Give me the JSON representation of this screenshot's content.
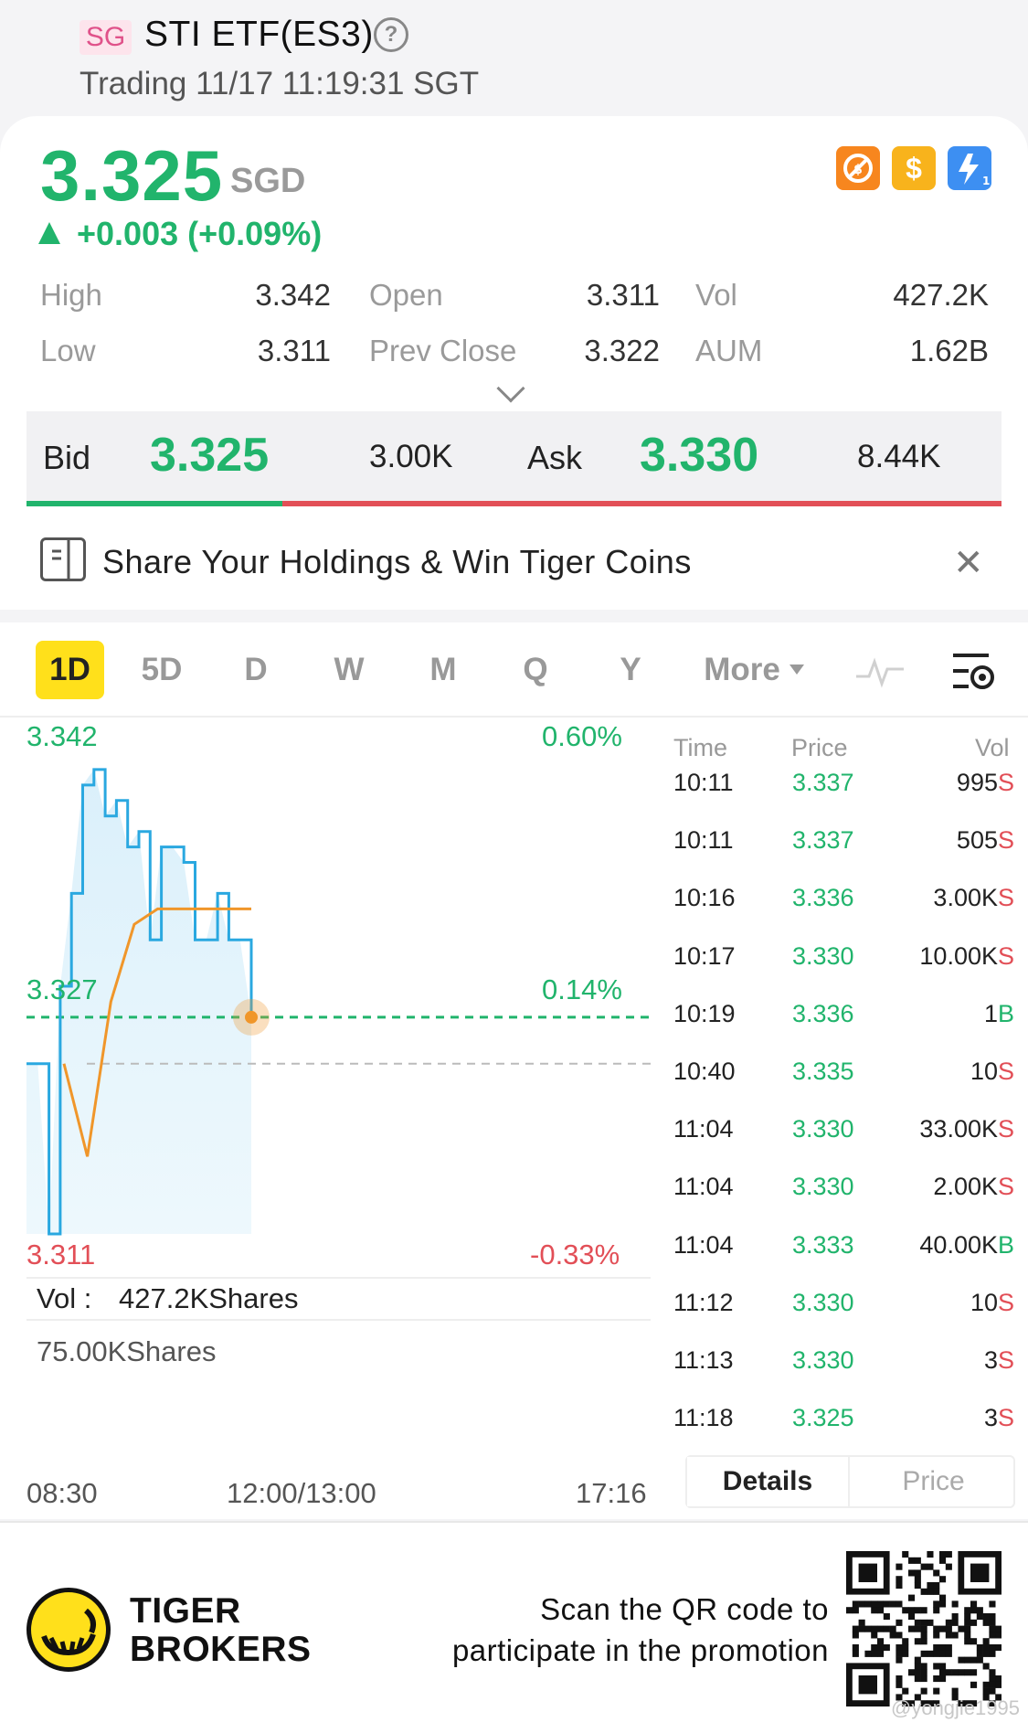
{
  "header": {
    "market_badge": "SG",
    "title": "STI ETF(ES3)",
    "status": "Trading 11/17 11:19:31 SGT"
  },
  "quote": {
    "price": "3.325",
    "currency": "SGD",
    "change": "+0.003 (+0.09%)",
    "badges": [
      {
        "icon": "no-short-icon",
        "color": "#f7861e"
      },
      {
        "icon": "dollar-icon",
        "color": "#f8b31c"
      },
      {
        "icon": "lightning-level1-icon",
        "color": "#3d8ff2"
      }
    ],
    "stats": {
      "high_label": "High",
      "high": "3.342",
      "low_label": "Low",
      "low": "3.311",
      "open_label": "Open",
      "open": "3.311",
      "prev_close_label": "Prev Close",
      "prev_close": "3.322",
      "vol_label": "Vol",
      "vol": "427.2K",
      "aum_label": "AUM",
      "aum": "1.62B"
    }
  },
  "bid_ask": {
    "bid_label": "Bid",
    "bid_price": "3.325",
    "bid_size": "3.00K",
    "ask_label": "Ask",
    "ask_price": "3.330",
    "ask_size": "8.44K",
    "bid_ratio": 0.262
  },
  "promo": {
    "text": "Share Your Holdings & Win Tiger Coins"
  },
  "chart_tabs": {
    "items": [
      "1D",
      "5D",
      "D",
      "W",
      "M",
      "Q",
      "Y"
    ],
    "more": "More",
    "active": "1D"
  },
  "chart_labels": {
    "high": "3.342",
    "high_pct": "0.60%",
    "current": "3.327",
    "current_pct": "0.14%",
    "low": "3.311",
    "low_pct": "-0.33%",
    "vol_label": "Vol :",
    "vol_value": "427.2KShares",
    "vol_max": "75.00KShares",
    "x_start": "08:30",
    "x_mid": "12:00/13:00",
    "x_end": "17:16"
  },
  "chart_data": {
    "type": "line",
    "title": "",
    "x_labels": [
      "08:30",
      "12:00/13:00",
      "17:16"
    ],
    "ylim": [
      3.311,
      3.342
    ],
    "price_series_approx": [
      3.322,
      3.322,
      3.311,
      3.327,
      3.333,
      3.34,
      3.341,
      3.338,
      3.339,
      3.336,
      3.337,
      3.33,
      3.336,
      3.336,
      3.335,
      3.33,
      3.33,
      3.333,
      3.33,
      3.33,
      3.325
    ],
    "avg_price_approx": [
      3.322,
      3.316,
      3.326,
      3.331,
      3.332,
      3.332,
      3.332,
      3.332,
      3.332
    ],
    "prev_close": 3.322,
    "current_price": 3.325
  },
  "ticks": {
    "headers": {
      "time": "Time",
      "price": "Price",
      "vol": "Vol"
    },
    "rows": [
      {
        "time": "10:11",
        "price": "3.337",
        "vol": "995",
        "side": "S"
      },
      {
        "time": "10:11",
        "price": "3.337",
        "vol": "505",
        "side": "S"
      },
      {
        "time": "10:16",
        "price": "3.336",
        "vol": "3.00K",
        "side": "S"
      },
      {
        "time": "10:17",
        "price": "3.330",
        "vol": "10.00K",
        "side": "S"
      },
      {
        "time": "10:19",
        "price": "3.336",
        "vol": "1",
        "side": "B"
      },
      {
        "time": "10:40",
        "price": "3.335",
        "vol": "10",
        "side": "S"
      },
      {
        "time": "11:04",
        "price": "3.330",
        "vol": "33.00K",
        "side": "S"
      },
      {
        "time": "11:04",
        "price": "3.330",
        "vol": "2.00K",
        "side": "S"
      },
      {
        "time": "11:04",
        "price": "3.333",
        "vol": "40.00K",
        "side": "B"
      },
      {
        "time": "11:12",
        "price": "3.330",
        "vol": "10",
        "side": "S"
      },
      {
        "time": "11:13",
        "price": "3.330",
        "vol": "3",
        "side": "S"
      },
      {
        "time": "11:18",
        "price": "3.325",
        "vol": "3",
        "side": "S"
      }
    ],
    "segment": {
      "details": "Details",
      "price": "Price"
    }
  },
  "footer": {
    "brand_line1": "TIGER",
    "brand_line2": "BROKERS",
    "scan_line1": "Scan the QR code to",
    "scan_line2": "participate in the promotion",
    "watermark": "@yongjie1995"
  },
  "colors": {
    "up": "#21b46c",
    "down": "#e24f57",
    "line": "#2aa8e0",
    "avg_line": "#f0962a",
    "accent": "#ffe01b"
  }
}
